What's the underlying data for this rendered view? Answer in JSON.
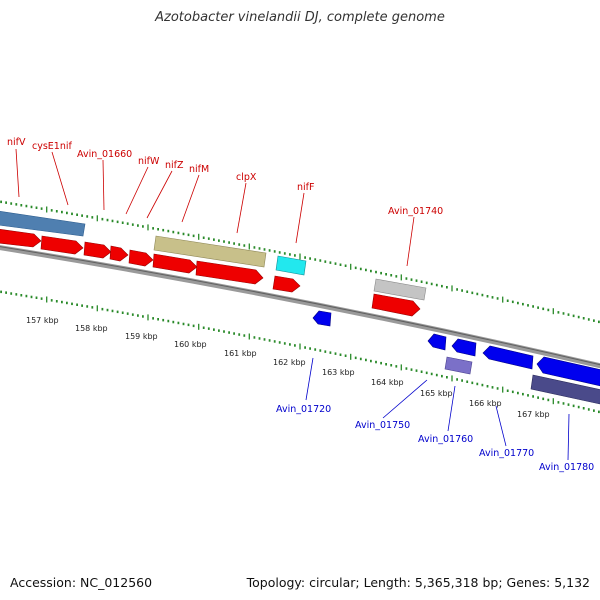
{
  "title": "Azotobacter vinelandii DJ, complete genome",
  "footer": {
    "accession": "Accession: NC_012560",
    "topology": "Topology: circular; Length: 5,365,318 bp; Genes: 5,132"
  },
  "colors": {
    "forward_label": "#cc0000",
    "reverse_label": "#0000cc",
    "tick": "#2a8a2a",
    "backbone": "#808080",
    "cds_red": "#ee0000",
    "cds_blue": "#0000ee",
    "steelblue": "#4f7fb0",
    "khaki": "#c8c08a",
    "cyan": "#22e8ee",
    "gray": "#c0c0c0",
    "lavender": "#7b70c8",
    "darkslate": "#4a4a8a"
  },
  "scale_labels": [
    "157 kbp",
    "158 kbp",
    "159 kbp",
    "160 kbp",
    "161 kbp",
    "162 kbp",
    "163 kbp",
    "164 kbp",
    "165 kbp",
    "166 kbp",
    "167 kbp"
  ],
  "forward_labels": [
    "nifV",
    "cysE1nif",
    "Avin_01660",
    "nifW",
    "nifZ",
    "nifM",
    "clpX",
    "nifF",
    "Avin_01740"
  ],
  "reverse_labels": [
    "Avin_01720",
    "Avin_01750",
    "Avin_01760",
    "Avin_01770",
    "Avin_01780"
  ]
}
